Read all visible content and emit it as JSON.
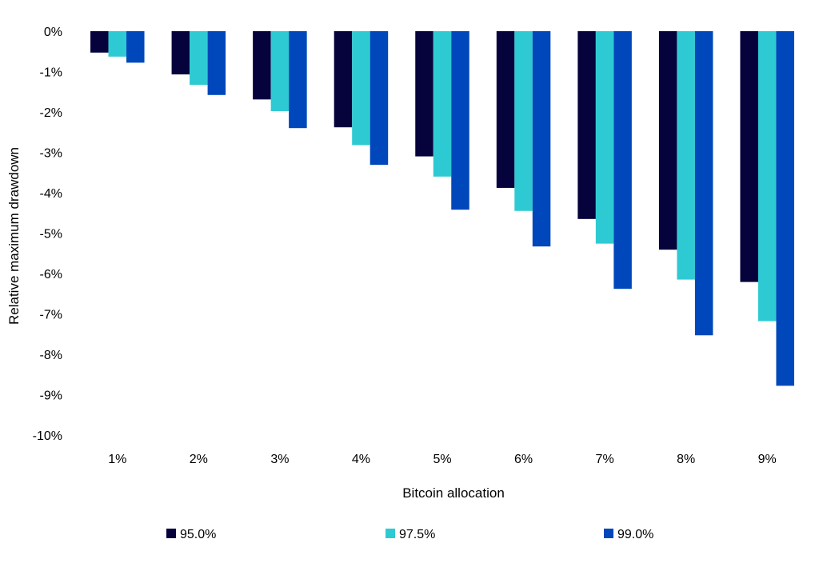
{
  "chart_data": {
    "type": "bar",
    "title": "",
    "xlabel": "Bitcoin allocation",
    "ylabel": "Relative maximum drawdown",
    "categories": [
      "1%",
      "2%",
      "3%",
      "4%",
      "5%",
      "6%",
      "7%",
      "8%",
      "9%"
    ],
    "ylim": [
      -10,
      0
    ],
    "yticks": [
      0,
      -1,
      -2,
      -3,
      -4,
      -5,
      -6,
      -7,
      -8,
      -9,
      -10
    ],
    "ytick_labels": [
      "0%",
      "-1%",
      "-2%",
      "-3%",
      "-4%",
      "-5%",
      "-6%",
      "-7%",
      "-8%",
      "-9%",
      "-10%"
    ],
    "grid": false,
    "legend_position": "bottom",
    "series": [
      {
        "name": "95.0%",
        "color": "#05023c",
        "values": [
          -0.53,
          -1.07,
          -1.69,
          -2.38,
          -3.1,
          -3.88,
          -4.65,
          -5.41,
          -6.21
        ]
      },
      {
        "name": "97.5%",
        "color": "#2ecad3",
        "values": [
          -0.63,
          -1.33,
          -1.98,
          -2.82,
          -3.6,
          -4.45,
          -5.26,
          -6.15,
          -7.18
        ]
      },
      {
        "name": "99.0%",
        "color": "#0047bb",
        "values": [
          -0.78,
          -1.58,
          -2.4,
          -3.31,
          -4.42,
          -5.33,
          -6.38,
          -7.53,
          -8.78
        ]
      }
    ]
  }
}
